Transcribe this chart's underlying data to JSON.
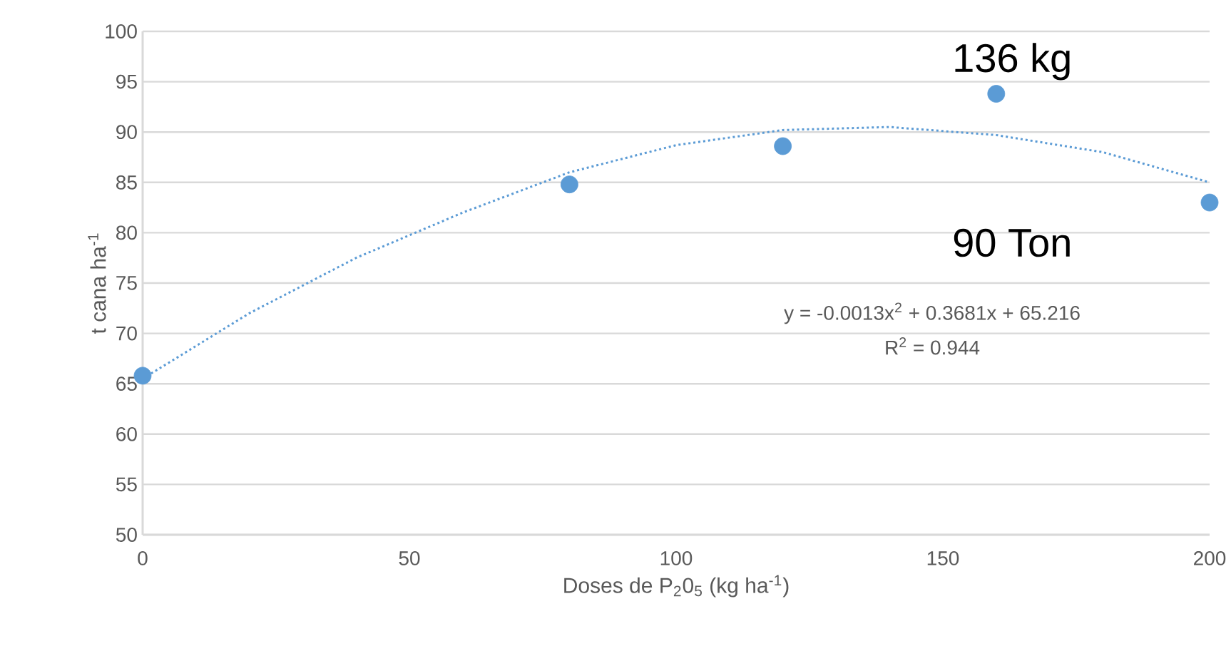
{
  "chart_data": {
    "type": "scatter",
    "xlabel": "Doses de P$_{2}$0$_{5}$ (kg ha$^{-1}$)",
    "ylabel": "t cana ha$^{-1}$",
    "xlim": [
      0,
      200
    ],
    "xticks": [
      0,
      50,
      100,
      150,
      200
    ],
    "ylim": [
      50,
      100
    ],
    "yticks": [
      50,
      55,
      60,
      65,
      70,
      75,
      80,
      85,
      90,
      95,
      100
    ],
    "grid": "y",
    "series": [
      {
        "color": "#5b9bd5",
        "marker": "circle",
        "x": [
          0,
          80,
          120,
          160,
          200
        ],
        "values": [
          65.8,
          84.8,
          88.6,
          93.8,
          83
        ]
      },
      {
        "type": "line",
        "color": "#5b9bd5",
        "marker": "none",
        "line_style": "dotted",
        "x": [
          0,
          20,
          40,
          60,
          80,
          100,
          120,
          140,
          160,
          180,
          200
        ],
        "values": [
          65.5,
          72,
          77.5,
          82,
          86,
          88.7,
          90.2,
          90.5,
          89.7,
          88,
          85
        ]
      }
    ],
    "annotations": [
      "136 kg",
      "90 Ton",
      "y = -0.0013x$^{2}$ + 0.3681x + 65.216",
      "R$^{2}$ = 0.944"
    ]
  }
}
